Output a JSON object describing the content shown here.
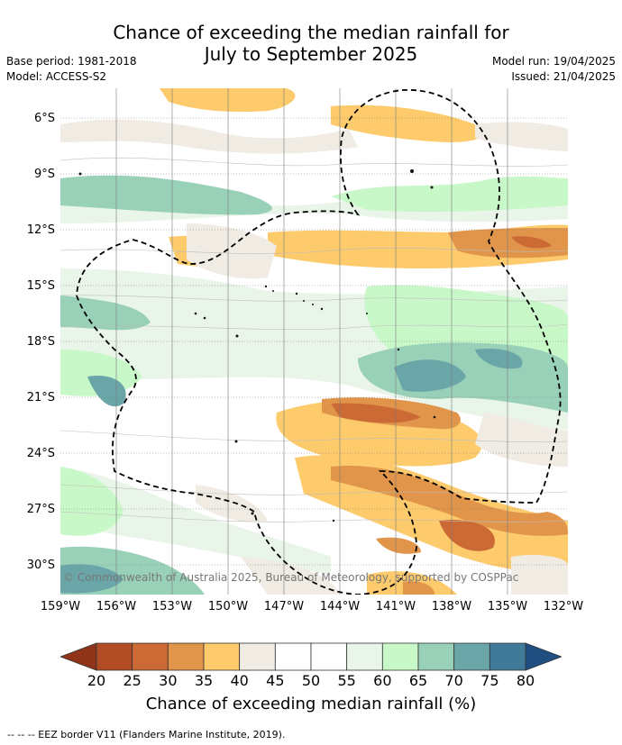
{
  "title": {
    "line1": "Chance of exceeding the median rainfall for",
    "line2": "July to September 2025"
  },
  "meta_left": {
    "base_period": "Base period: 1981-2018",
    "model": "Model: ACCESS-S2"
  },
  "meta_right": {
    "model_run": "Model run: 19/04/2025",
    "issued": "Issued: 21/04/2025"
  },
  "map": {
    "lat_labels": [
      "6°S",
      "9°S",
      "12°S",
      "15°S",
      "18°S",
      "21°S",
      "24°S",
      "27°S",
      "30°S"
    ],
    "lon_labels": [
      "159°W",
      "156°W",
      "153°W",
      "150°W",
      "147°W",
      "144°W",
      "141°W",
      "138°W",
      "135°W",
      "132°W"
    ],
    "copyright": "© Commonwealth of Australia 2025, Bureau of Meteorology, supported by COSPPac"
  },
  "colorbar": {
    "labels": [
      "20",
      "25",
      "30",
      "35",
      "40",
      "45",
      "50",
      "55",
      "60",
      "65",
      "70",
      "75",
      "80"
    ],
    "colors": [
      "#b24c24",
      "#cc6a36",
      "#e0954a",
      "#fdca6c",
      "#f0ebe3",
      "#ffffff",
      "#ffffff",
      "#e8f5e8",
      "#c8f8c8",
      "#99d0b8",
      "#6aa6a8",
      "#3f7a98"
    ],
    "low_color": "#8f3418",
    "high_color": "#1f4f80",
    "title": "Chance of exceeding median rainfall (%)"
  },
  "footer": "-- -- -- EEZ border V11 (Flanders Marine Institute, 2019)."
}
